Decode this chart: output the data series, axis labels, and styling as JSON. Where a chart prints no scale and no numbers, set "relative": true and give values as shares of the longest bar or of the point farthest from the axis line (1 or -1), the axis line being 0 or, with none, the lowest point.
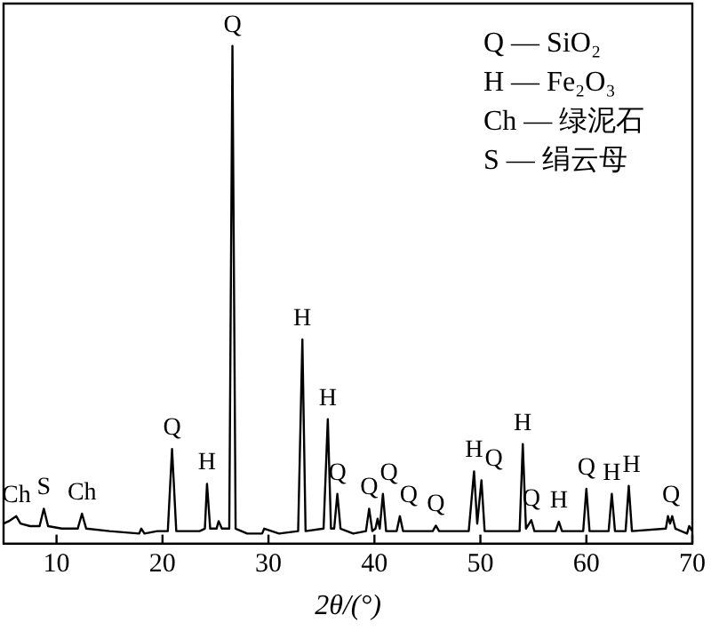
{
  "chart_data": {
    "type": "line",
    "relative": true,
    "xlabel": "2θ/(°)",
    "xlim": [
      5,
      70
    ],
    "xticks": [
      10,
      20,
      30,
      40,
      50,
      60,
      70
    ],
    "grid": false,
    "legend": false,
    "marker": "none",
    "tick_labels": "x",
    "series": [
      {
        "color": "#000000",
        "x": [
          5,
          5.5,
          6.2,
          6.6,
          7.5,
          8.4,
          8.8,
          9.2,
          10.5,
          12,
          12.4,
          12.8,
          15,
          17.8,
          18,
          18.3,
          19.5,
          20.5,
          20.9,
          21.3,
          23.5,
          24,
          24.2,
          24.5,
          25.1,
          25.3,
          25.6,
          26.3,
          26.6,
          26.9,
          28,
          29.4,
          29.6,
          31,
          32.8,
          33.2,
          33.5,
          35.2,
          35.6,
          35.9,
          36.2,
          36.5,
          36.8,
          38,
          39.2,
          39.5,
          39.8,
          40.1,
          40.3,
          40.5,
          40.8,
          41.1,
          42.1,
          42.4,
          42.7,
          45.5,
          45.8,
          46.1,
          48.9,
          49.4,
          49.7,
          50.1,
          50.4,
          53.7,
          54,
          54.3,
          54.8,
          55.1,
          57.1,
          57.4,
          57.7,
          59.7,
          60,
          60.3,
          62.1,
          62.4,
          62.7,
          63.7,
          64,
          64.3,
          67.5,
          67.7,
          67.9,
          68.1,
          68.4,
          69.5,
          69.7,
          70
        ],
        "values": [
          0.04,
          0.045,
          0.055,
          0.04,
          0.035,
          0.035,
          0.07,
          0.035,
          0.03,
          0.03,
          0.06,
          0.03,
          0.025,
          0.02,
          0.03,
          0.02,
          0.025,
          0.025,
          0.19,
          0.025,
          0.025,
          0.03,
          0.12,
          0.03,
          0.03,
          0.045,
          0.03,
          0.03,
          1.0,
          0.03,
          0.02,
          0.02,
          0.03,
          0.02,
          0.025,
          0.41,
          0.025,
          0.03,
          0.25,
          0.03,
          0.03,
          0.1,
          0.03,
          0.02,
          0.025,
          0.07,
          0.025,
          0.03,
          0.05,
          0.03,
          0.1,
          0.025,
          0.025,
          0.055,
          0.025,
          0.025,
          0.036,
          0.025,
          0.025,
          0.145,
          0.04,
          0.127,
          0.025,
          0.025,
          0.2,
          0.03,
          0.047,
          0.025,
          0.025,
          0.044,
          0.025,
          0.025,
          0.11,
          0.025,
          0.025,
          0.1,
          0.025,
          0.025,
          0.116,
          0.025,
          0.03,
          0.055,
          0.04,
          0.055,
          0.03,
          0.02,
          0.035,
          0.025
        ]
      }
    ],
    "annotations": [
      "Q — SiO₂",
      "H — Fe₂O₃",
      "Ch — 绿泥石",
      "S — 绢云母",
      {
        "text": "Ch",
        "x": 6.2,
        "y": 0.055
      },
      {
        "text": "S",
        "x": 8.8,
        "y": 0.07
      },
      {
        "text": "Ch",
        "x": 12.4,
        "y": 0.06
      },
      {
        "text": "Q",
        "x": 20.9,
        "y": 0.19
      },
      {
        "text": "H",
        "x": 24.2,
        "y": 0.12
      },
      {
        "text": "Q",
        "x": 26.6,
        "y": 1.0
      },
      {
        "text": "H",
        "x": 33.2,
        "y": 0.41
      },
      {
        "text": "H",
        "x": 35.6,
        "y": 0.25
      },
      {
        "text": "Q",
        "x": 36.5,
        "y": 0.1
      },
      {
        "text": "Q",
        "x": 39.5,
        "y": 0.07
      },
      {
        "text": "Q",
        "x": 40.8,
        "y": 0.1
      },
      {
        "text": "Q",
        "x": 42.4,
        "y": 0.055
      },
      {
        "text": "Q",
        "x": 45.8,
        "y": 0.036
      },
      {
        "text": "H",
        "x": 49.4,
        "y": 0.145
      },
      {
        "text": "Q",
        "x": 50.1,
        "y": 0.127
      },
      {
        "text": "H",
        "x": 54,
        "y": 0.2
      },
      {
        "text": "Q",
        "x": 54.8,
        "y": 0.047
      },
      {
        "text": "H",
        "x": 57.4,
        "y": 0.044
      },
      {
        "text": "Q",
        "x": 60,
        "y": 0.11
      },
      {
        "text": "H",
        "x": 62.4,
        "y": 0.1
      },
      {
        "text": "H",
        "x": 64,
        "y": 0.116
      },
      {
        "text": "Q",
        "x": 68,
        "y": 0.055
      }
    ]
  }
}
